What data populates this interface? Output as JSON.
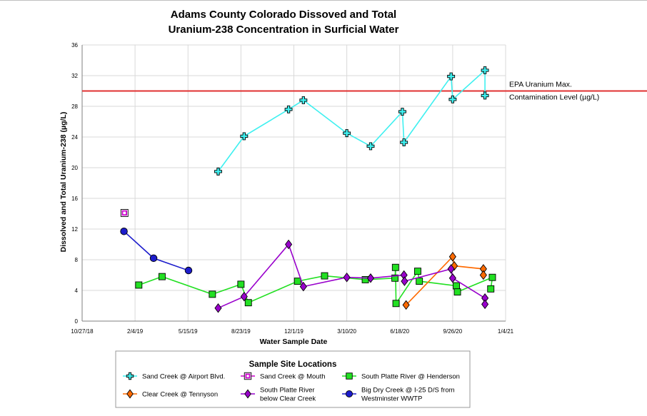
{
  "chart_data": {
    "type": "line",
    "title_lines": [
      "Adams County Colorado Dissoved and Total",
      "Uranium-238 Concentration in Surficial Water"
    ],
    "xlabel": "Water Sample Date",
    "ylabel": "Dissolved and Total Uranium-238  (µg/L)",
    "ylim": [
      0,
      36
    ],
    "yticks": [
      0,
      4,
      8,
      12,
      16,
      20,
      24,
      28,
      32,
      36
    ],
    "xlim": [
      "2018-10-27",
      "2021-01-04"
    ],
    "xticks": [
      "10/27/18",
      "2/4/19",
      "5/15/19",
      "8/23/19",
      "12/1/19",
      "3/10/20",
      "6/18/20",
      "9/26/20",
      "1/4/21"
    ],
    "grid": true,
    "reference_line": {
      "value": 30,
      "color": "#e03030",
      "label_lines": [
        "EPA Uranium Max.",
        "Contamination Level (µg/L)"
      ]
    },
    "legend": {
      "title": "Sample Site Locations",
      "position": "bottom"
    },
    "series": [
      {
        "name": "Sand Creek @ Airport Blvd.",
        "marker": "cross",
        "color": "#3ff0f0",
        "points": [
          {
            "x": "2019-07-11",
            "y": 19.5
          },
          {
            "x": "2019-08-29",
            "y": 24.1
          },
          {
            "x": "2019-11-21",
            "y": 27.6
          },
          {
            "x": "2019-12-19",
            "y": 28.8
          },
          {
            "x": "2020-03-10",
            "y": 24.5
          },
          {
            "x": "2020-04-24",
            "y": 22.8
          },
          {
            "x": "2020-06-23",
            "y": 27.3
          },
          {
            "x": "2020-06-26",
            "y": 23.3
          },
          {
            "x": "2020-09-23",
            "y": 31.9
          },
          {
            "x": "2020-09-26",
            "y": 28.9
          },
          {
            "x": "2020-11-26",
            "y": 32.7
          },
          {
            "x": "2020-11-26",
            "y": 29.4
          }
        ]
      },
      {
        "name": "Sand Creek @ Mouth",
        "marker": "square-open",
        "color": "#cc00cc",
        "points": [
          {
            "x": "2019-01-15",
            "y": 14.1
          }
        ]
      },
      {
        "name": "South Platte River @ Henderson",
        "marker": "square",
        "color": "#22e022",
        "points": [
          {
            "x": "2019-02-11",
            "y": 4.7
          },
          {
            "x": "2019-03-27",
            "y": 5.8
          },
          {
            "x": "2019-06-30",
            "y": 3.5
          },
          {
            "x": "2019-08-23",
            "y": 4.8
          },
          {
            "x": "2019-09-06",
            "y": 2.4
          },
          {
            "x": "2019-12-08",
            "y": 5.2
          },
          {
            "x": "2020-01-28",
            "y": 5.9
          },
          {
            "x": "2020-04-14",
            "y": 5.4
          },
          {
            "x": "2020-06-09",
            "y": 5.6
          },
          {
            "x": "2020-06-10",
            "y": 7.0
          },
          {
            "x": "2020-06-11",
            "y": 2.3
          },
          {
            "x": "2020-07-22",
            "y": 6.5
          },
          {
            "x": "2020-07-25",
            "y": 5.2
          },
          {
            "x": "2020-10-03",
            "y": 4.6
          },
          {
            "x": "2020-10-05",
            "y": 3.8
          },
          {
            "x": "2020-12-10",
            "y": 5.7
          },
          {
            "x": "2020-12-07",
            "y": 4.2
          }
        ]
      },
      {
        "name": "Clear Creek @ Tennyson",
        "marker": "diamond",
        "color": "#ff6a00",
        "points": [
          {
            "x": "2020-06-30",
            "y": 2.1
          },
          {
            "x": "2020-09-26",
            "y": 8.4
          },
          {
            "x": "2020-09-29",
            "y": 7.2
          },
          {
            "x": "2020-11-23",
            "y": 6.8
          },
          {
            "x": "2020-11-23",
            "y": 6.0
          }
        ]
      },
      {
        "name": "South Platte River below Clear Creek",
        "marker": "diamond",
        "color": "#9900cc",
        "points": [
          {
            "x": "2019-07-11",
            "y": 1.7
          },
          {
            "x": "2019-08-29",
            "y": 3.2
          },
          {
            "x": "2019-11-21",
            "y": 10.0
          },
          {
            "x": "2019-12-19",
            "y": 4.5
          },
          {
            "x": "2020-03-10",
            "y": 5.7
          },
          {
            "x": "2020-04-24",
            "y": 5.6
          },
          {
            "x": "2020-06-26",
            "y": 6.0
          },
          {
            "x": "2020-06-27",
            "y": 5.2
          },
          {
            "x": "2020-09-23",
            "y": 6.8
          },
          {
            "x": "2020-09-26",
            "y": 5.6
          },
          {
            "x": "2020-11-26",
            "y": 3.0
          },
          {
            "x": "2020-11-26",
            "y": 2.2
          }
        ]
      },
      {
        "name": "Big Dry Creek @ I-25 D/S from Westminster WWTP",
        "marker": "circle",
        "color": "#1c1ccc",
        "points": [
          {
            "x": "2019-01-14",
            "y": 11.7
          },
          {
            "x": "2019-03-11",
            "y": 8.2
          },
          {
            "x": "2019-05-16",
            "y": 6.6
          }
        ]
      }
    ]
  },
  "legend_layout": [
    {
      "series": 0,
      "lines": [
        "Sand Creek @ Airport Blvd."
      ]
    },
    {
      "series": 1,
      "lines": [
        "Sand Creek @ Mouth"
      ]
    },
    {
      "series": 2,
      "lines": [
        "South Platte River @ Henderson"
      ]
    },
    {
      "series": 3,
      "lines": [
        "Clear Creek @ Tennyson"
      ]
    },
    {
      "series": 4,
      "lines": [
        "South Platte River",
        "below Clear Creek"
      ]
    },
    {
      "series": 5,
      "lines": [
        "Big Dry Creek @ I-25 D/S from",
        "Westminster WWTP"
      ]
    }
  ]
}
